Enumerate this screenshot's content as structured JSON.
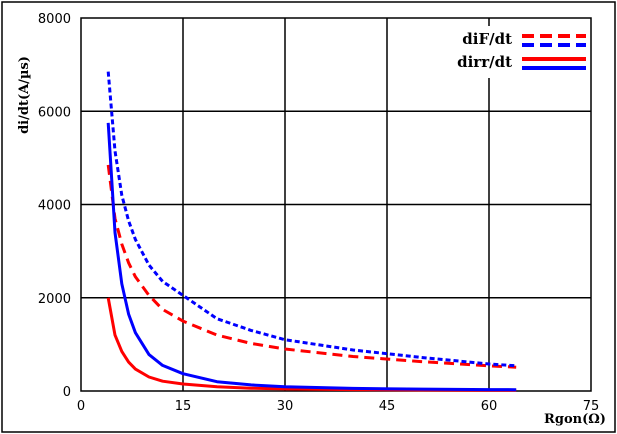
{
  "chart_data": {
    "type": "line",
    "xlabel": "Rgon(Ω)",
    "ylabel": "di/dt(A/µs)",
    "xlim": [
      0,
      75
    ],
    "ylim": [
      0,
      8000
    ],
    "x_ticks": [
      "0",
      "15",
      "30",
      "45",
      "60",
      "75"
    ],
    "y_ticks": [
      "0",
      "2000",
      "4000",
      "6000",
      "8000"
    ],
    "grid": true,
    "legend_position": "top-right",
    "legend_entries": [
      {
        "label": "diF/dt",
        "styles": [
          "red-dashed",
          "blue-dashed"
        ]
      },
      {
        "label": "dirr/dt",
        "styles": [
          "red-solid",
          "blue-solid"
        ]
      }
    ],
    "series": [
      {
        "color": "#ff0000",
        "style": "dashed",
        "x": [
          4,
          5,
          6,
          7,
          8,
          10,
          12,
          15,
          20,
          25,
          30,
          40,
          50,
          60,
          64
        ],
        "y": [
          4850,
          3700,
          3150,
          2750,
          2450,
          2050,
          1750,
          1500,
          1200,
          1020,
          900,
          740,
          630,
          540,
          510
        ]
      },
      {
        "color": "#0000ff",
        "style": "dashed",
        "x": [
          4,
          5,
          6,
          7,
          8,
          10,
          12,
          15,
          20,
          25,
          30,
          40,
          50,
          60,
          64
        ],
        "y": [
          6850,
          5150,
          4200,
          3650,
          3250,
          2700,
          2350,
          2050,
          1550,
          1300,
          1100,
          880,
          720,
          580,
          540
        ]
      },
      {
        "color": "#ff0000",
        "style": "solid",
        "x": [
          4,
          5,
          6,
          7,
          8,
          10,
          12,
          15,
          20,
          25,
          30,
          40,
          50,
          60,
          64
        ],
        "y": [
          2000,
          1200,
          850,
          620,
          470,
          300,
          210,
          150,
          90,
          60,
          45,
          30,
          22,
          18,
          17
        ]
      },
      {
        "color": "#0000ff",
        "style": "solid",
        "x": [
          4,
          5,
          6,
          7,
          8,
          10,
          12,
          15,
          20,
          25,
          30,
          40,
          50,
          60,
          64
        ],
        "y": [
          5750,
          3400,
          2300,
          1650,
          1250,
          780,
          550,
          370,
          200,
          130,
          90,
          55,
          40,
          30,
          28
        ]
      }
    ]
  }
}
